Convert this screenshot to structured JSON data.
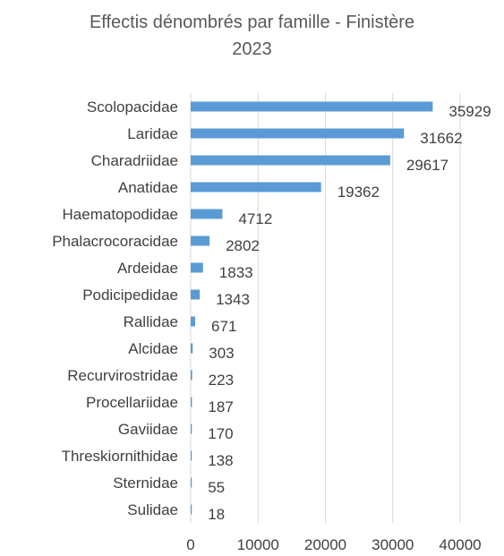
{
  "chart_data": {
    "type": "bar",
    "orientation": "horizontal",
    "title_lines": [
      "Effectis dénombrés par famille - Finistère",
      "2023"
    ],
    "categories": [
      "Scolopacidae",
      "Laridae",
      "Charadriidae",
      "Anatidae",
      "Haematopodidae",
      "Phalacrocoracidae",
      "Ardeidae",
      "Podicipedidae",
      "Rallidae",
      "Alcidae",
      "Recurvirostridae",
      "Procellariidae",
      "Gaviidae",
      "Threskiornithidae",
      "Sternidae",
      "Sulidae"
    ],
    "values": [
      35929,
      31662,
      29617,
      19362,
      4712,
      2802,
      1833,
      1343,
      671,
      303,
      223,
      187,
      170,
      138,
      55,
      18
    ],
    "xlim": [
      0,
      40000
    ],
    "xticks": [
      0,
      10000,
      20000,
      30000,
      40000
    ],
    "grid": "vertical",
    "data_labels": true,
    "legend": "none",
    "bar_color": "#5B9BD5",
    "grid_color": "#D9D9D9"
  }
}
